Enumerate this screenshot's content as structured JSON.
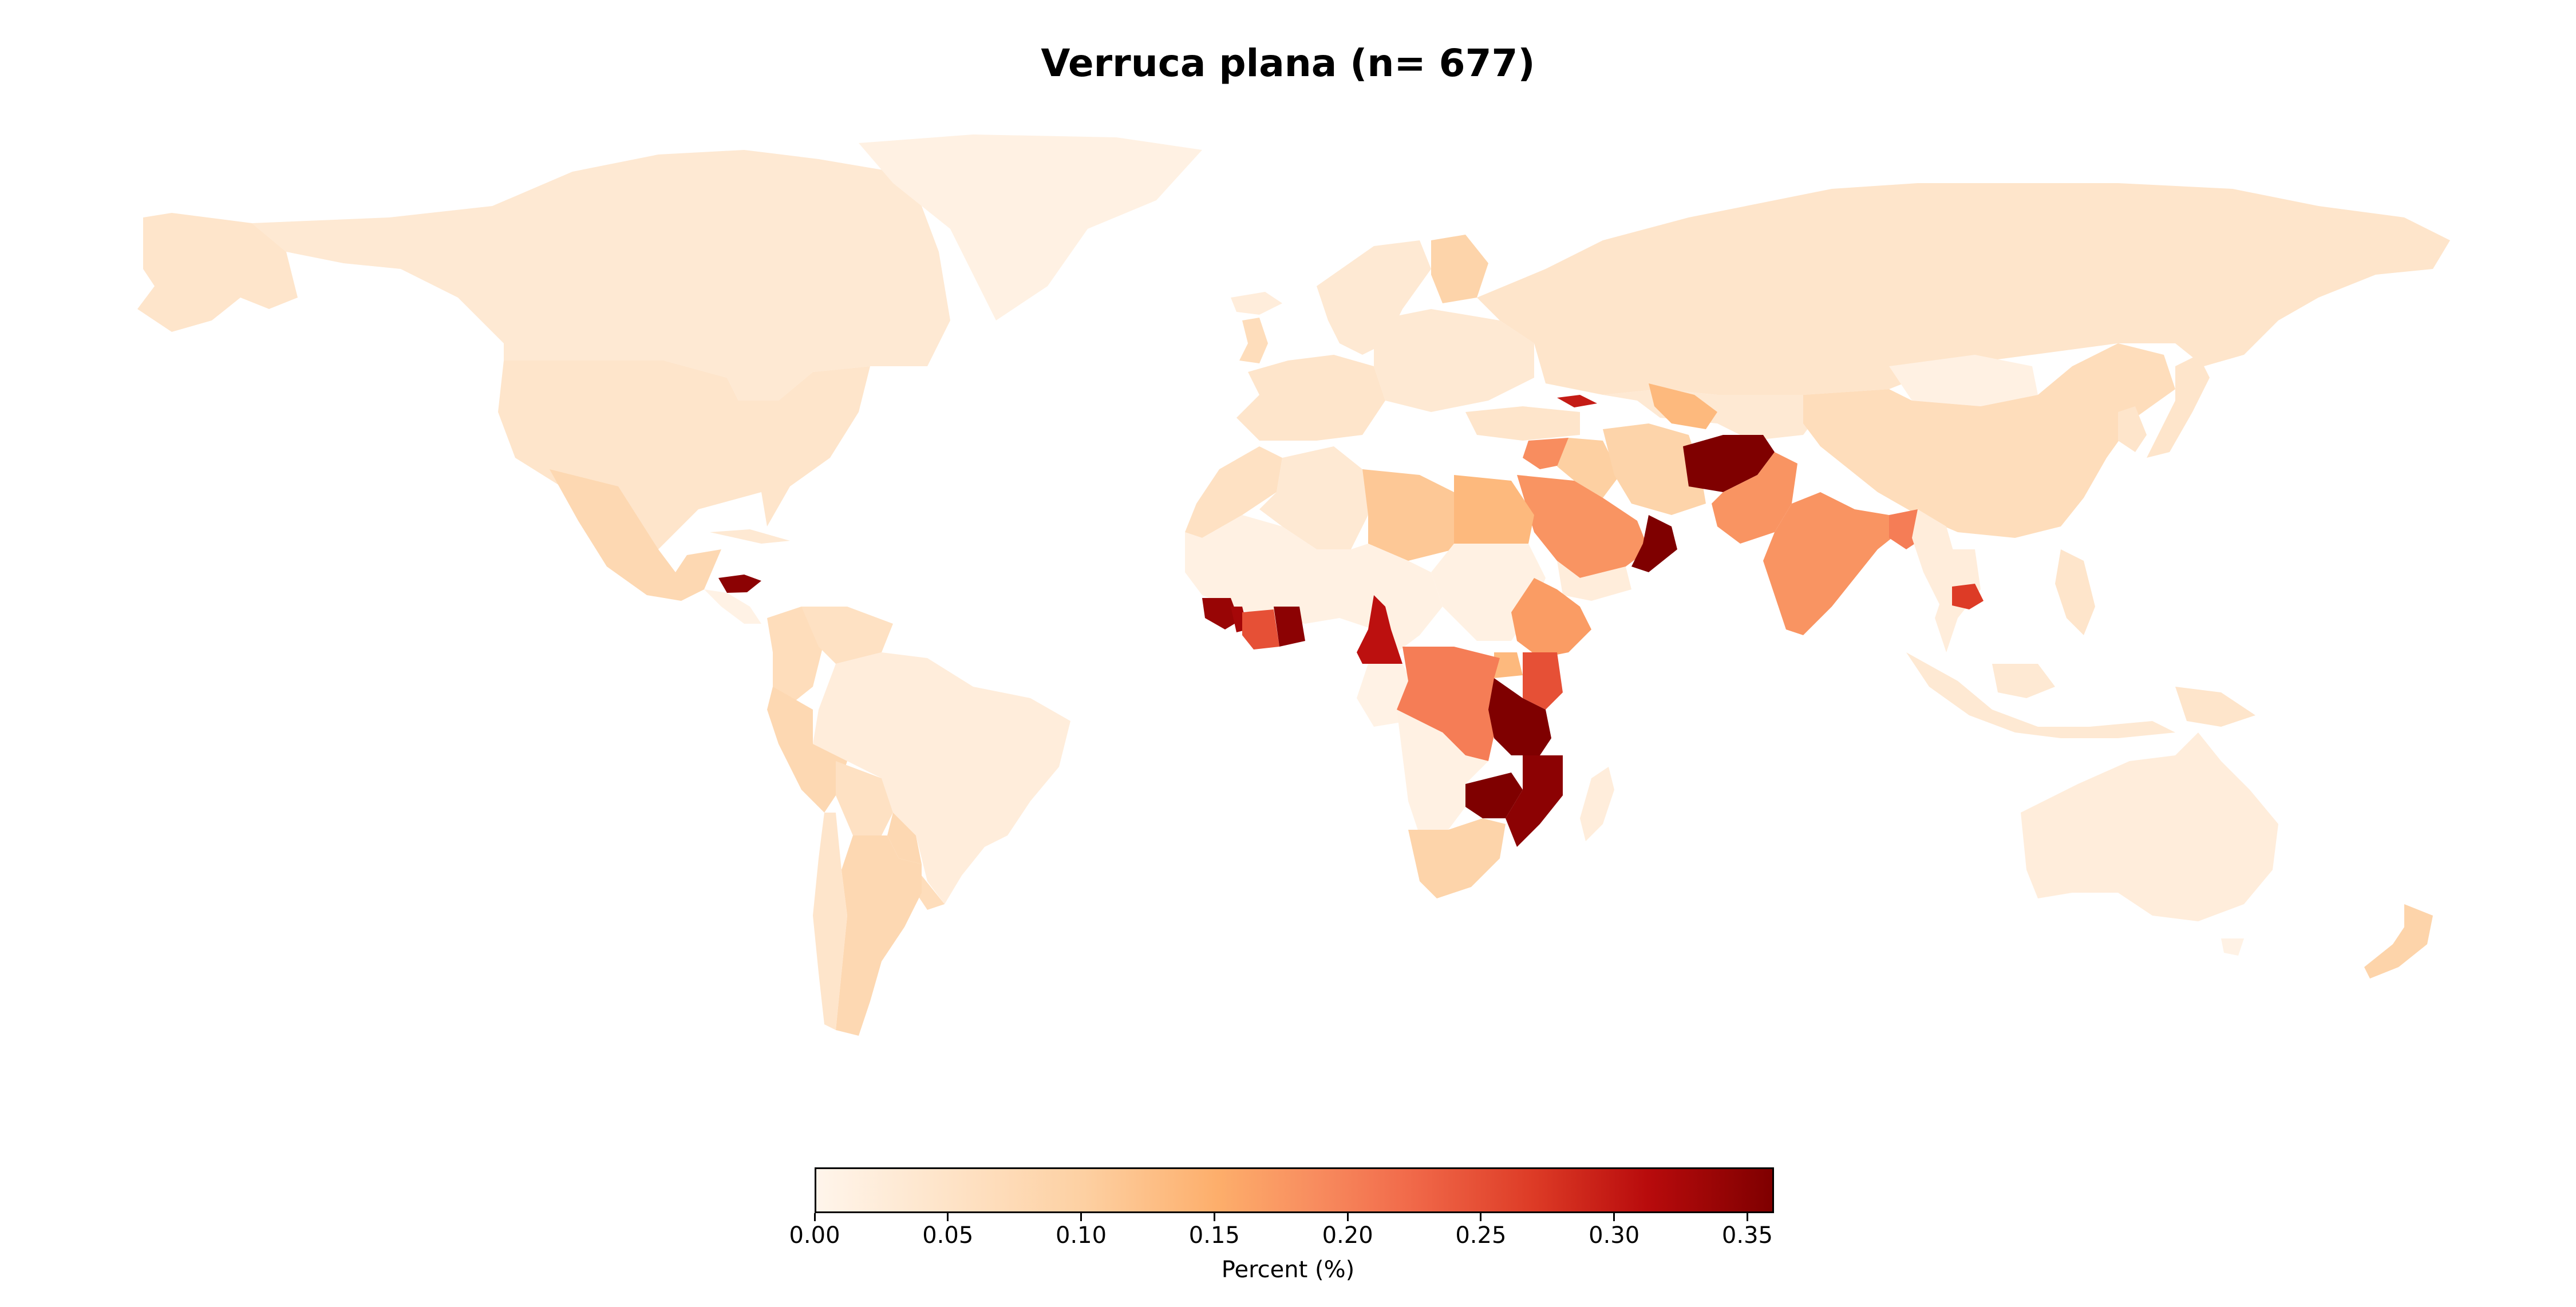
{
  "title": "Verruca plana (n= 677)",
  "colorbar": {
    "label": "Percent (%)",
    "min": 0,
    "max": 0.36,
    "ticks": [
      "0.00",
      "0.05",
      "0.10",
      "0.15",
      "0.20",
      "0.25",
      "0.30",
      "0.35"
    ],
    "colormap": "OrRd",
    "colors": [
      "#fff5eb",
      "#fee3c7",
      "#fdd0a2",
      "#fdae6b",
      "#f88d5f",
      "#f16a4a",
      "#dd3b26",
      "#b80b0c",
      "#7f0000"
    ]
  },
  "chart_data": {
    "type": "choropleth",
    "value_unit": "Percent (%)",
    "scale": [
      0,
      0.36
    ],
    "regions": [
      {
        "region": "Canada",
        "value": 0.03
      },
      {
        "region": "United States",
        "value": 0.04
      },
      {
        "region": "Alaska",
        "value": 0.04
      },
      {
        "region": "Greenland",
        "value": 0.01
      },
      {
        "region": "Mexico",
        "value": 0.07
      },
      {
        "region": "Honduras",
        "value": 0.35
      },
      {
        "region": "Cuba",
        "value": 0.03
      },
      {
        "region": "Colombia",
        "value": 0.06
      },
      {
        "region": "Venezuela",
        "value": 0.05
      },
      {
        "region": "Brazil",
        "value": 0.02
      },
      {
        "region": "Peru",
        "value": 0.07
      },
      {
        "region": "Bolivia",
        "value": 0.05
      },
      {
        "region": "Argentina",
        "value": 0.07
      },
      {
        "region": "Chile",
        "value": 0.04
      },
      {
        "region": "Paraguay",
        "value": 0.07
      },
      {
        "region": "Uruguay",
        "value": 0.06
      },
      {
        "region": "Iceland",
        "value": 0.02
      },
      {
        "region": "United Kingdom",
        "value": 0.06
      },
      {
        "region": "Scandinavia",
        "value": 0.03
      },
      {
        "region": "Finland",
        "value": 0.08
      },
      {
        "region": "Western Europe",
        "value": 0.04
      },
      {
        "region": "Eastern Europe",
        "value": 0.03
      },
      {
        "region": "Russia",
        "value": 0.04
      },
      {
        "region": "Morocco",
        "value": 0.05
      },
      {
        "region": "Algeria",
        "value": 0.03
      },
      {
        "region": "Libya",
        "value": 0.1
      },
      {
        "region": "Egypt",
        "value": 0.12
      },
      {
        "region": "Sahel",
        "value": 0.01
      },
      {
        "region": "Sudan",
        "value": 0.01
      },
      {
        "region": "Sierra Leone",
        "value": 0.34
      },
      {
        "region": "Liberia",
        "value": 0.33
      },
      {
        "region": "Cote d'Ivoire",
        "value": 0.25
      },
      {
        "region": "Ghana",
        "value": 0.35
      },
      {
        "region": "Cameroon",
        "value": 0.31
      },
      {
        "region": "Ethiopia",
        "value": 0.16
      },
      {
        "region": "Uganda",
        "value": 0.12
      },
      {
        "region": "Kenya",
        "value": 0.25
      },
      {
        "region": "DR Congo",
        "value": 0.2
      },
      {
        "region": "Tanzania",
        "value": 0.36
      },
      {
        "region": "Mozambique",
        "value": 0.35
      },
      {
        "region": "Zimbabwe",
        "value": 0.36
      },
      {
        "region": "Southern Africa",
        "value": 0.01
      },
      {
        "region": "South Africa",
        "value": 0.08
      },
      {
        "region": "Madagascar",
        "value": 0.02
      },
      {
        "region": "Turkey",
        "value": 0.04
      },
      {
        "region": "Georgia",
        "value": 0.3
      },
      {
        "region": "Syria",
        "value": 0.18
      },
      {
        "region": "Iraq",
        "value": 0.09
      },
      {
        "region": "Iran",
        "value": 0.08
      },
      {
        "region": "Saudi Arabia",
        "value": 0.17
      },
      {
        "region": "Oman",
        "value": 0.36
      },
      {
        "region": "Yemen",
        "value": 0.02
      },
      {
        "region": "Uzbekistan",
        "value": 0.12
      },
      {
        "region": "Kazakhstan",
        "value": 0.03
      },
      {
        "region": "Afghanistan",
        "value": 0.36
      },
      {
        "region": "Pakistan",
        "value": 0.17
      },
      {
        "region": "India",
        "value": 0.17
      },
      {
        "region": "Bangladesh",
        "value": 0.2
      },
      {
        "region": "Myanmar",
        "value": 0.02
      },
      {
        "region": "Thailand",
        "value": 0.02
      },
      {
        "region": "Cambodia",
        "value": 0.27
      },
      {
        "region": "China",
        "value": 0.06
      },
      {
        "region": "Mongolia",
        "value": 0.01
      },
      {
        "region": "Korea",
        "value": 0.04
      },
      {
        "region": "Japan",
        "value": 0.04
      },
      {
        "region": "Philippines",
        "value": 0.04
      },
      {
        "region": "Indonesia",
        "value": 0.03
      },
      {
        "region": "Papua New Guinea",
        "value": 0.04
      },
      {
        "region": "Australia",
        "value": 0.02
      },
      {
        "region": "New Zealand",
        "value": 0.08
      }
    ]
  }
}
